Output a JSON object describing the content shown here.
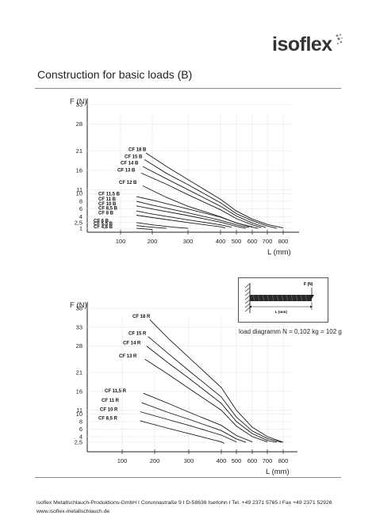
{
  "header": {
    "logo_text": "isoflex",
    "title": "Construction for basic loads (B)"
  },
  "load_diagram": {
    "force_label": "F (N)",
    "length_label": "L (mm)",
    "caption": "load diagramm  N = 0,102 kg = 102 g"
  },
  "footer": {
    "line1": "isoflex Metallschlauch-Produktions-GmbH  I  Corunnastraße 9  I  D-58636 Iserlohn  I  Tel. +49 2371 5765  I  Fax +49 2371 52926",
    "line2": "www.isoflex-metallschlauch.de"
  },
  "chart_data": [
    {
      "type": "line",
      "title": "",
      "ylabel": "F (N)",
      "xlabel": "L (mm)",
      "x_ticks": [
        "100",
        "200",
        "300",
        "400",
        "500",
        "600",
        "700",
        "800"
      ],
      "y_ticks": [
        "1",
        "2,5",
        "4",
        "6",
        "8",
        "10",
        "11",
        "16",
        "21",
        "28",
        "33"
      ],
      "xlim": [
        50,
        850
      ],
      "ylim": [
        0,
        33
      ],
      "series": [
        {
          "name": "CF 18 B",
          "label_x": 162,
          "label_y": 21.0,
          "points": [
            [
              180,
              20.5
            ],
            [
              240,
              17.0
            ],
            [
              300,
              13.6
            ],
            [
              400,
              8.5
            ],
            [
              500,
              5.5
            ],
            [
              600,
              3.4
            ],
            [
              700,
              2.0
            ],
            [
              800,
              1.1
            ]
          ]
        },
        {
          "name": "CF 15 B",
          "label_x": 157,
          "label_y": 19.2,
          "points": [
            [
              175,
              18.8
            ],
            [
              240,
              15.2
            ],
            [
              300,
              12.3
            ],
            [
              400,
              7.6
            ],
            [
              500,
              4.8
            ],
            [
              600,
              3.0
            ],
            [
              700,
              1.6
            ],
            [
              760,
              1.0
            ]
          ]
        },
        {
          "name": "CF 14 B",
          "label_x": 152,
          "label_y": 17.5,
          "points": [
            [
              170,
              17.0
            ],
            [
              240,
              13.8
            ],
            [
              300,
              11.0
            ],
            [
              400,
              6.7
            ],
            [
              500,
              4.2
            ],
            [
              600,
              2.4
            ],
            [
              690,
              1.2
            ]
          ]
        },
        {
          "name": "CF 13 B",
          "label_x": 148,
          "label_y": 15.7,
          "points": [
            [
              165,
              15.3
            ],
            [
              240,
              12.4
            ],
            [
              300,
              9.7
            ],
            [
              400,
              5.8
            ],
            [
              500,
              3.5
            ],
            [
              600,
              1.9
            ],
            [
              660,
              1.2
            ]
          ]
        },
        {
          "name": "CF 12 B",
          "label_x": 150,
          "label_y": 12.5,
          "points": [
            [
              170,
              12.0
            ],
            [
              240,
              9.0
            ],
            [
              300,
              6.7
            ],
            [
              400,
              4.0
            ],
            [
              500,
              2.4
            ],
            [
              600,
              1.4
            ]
          ]
        },
        {
          "name": "CF 11,5 B",
          "label_x": 124,
          "label_y": 9.5,
          "points": [
            [
              150,
              9.2
            ],
            [
              200,
              8.3
            ],
            [
              300,
              6.0
            ],
            [
              400,
              3.9
            ],
            [
              500,
              2.4
            ],
            [
              600,
              1.3
            ],
            [
              640,
              1.0
            ]
          ]
        },
        {
          "name": "CF 11 B",
          "label_x": 124,
          "label_y": 8.2,
          "points": [
            [
              150,
              8.0
            ],
            [
              200,
              7.0
            ],
            [
              300,
              5.0
            ],
            [
              400,
              3.1
            ],
            [
              500,
              1.9
            ],
            [
              580,
              1.2
            ]
          ]
        },
        {
          "name": "CF 10 B",
          "label_x": 124,
          "label_y": 7.0,
          "points": [
            [
              150,
              6.8
            ],
            [
              200,
              6.0
            ],
            [
              300,
              4.3
            ],
            [
              400,
              2.6
            ],
            [
              500,
              1.5
            ],
            [
              560,
              1.0
            ]
          ]
        },
        {
          "name": "CF 8,5 B",
          "label_x": 124,
          "label_y": 5.8,
          "points": [
            [
              150,
              5.5
            ],
            [
              200,
              4.7
            ],
            [
              300,
              3.2
            ],
            [
              400,
              1.9
            ],
            [
              470,
              1.3
            ]
          ]
        },
        {
          "name": "CF 8 B",
          "label_x": 124,
          "label_y": 4.6,
          "points": [
            [
              150,
              4.4
            ],
            [
              200,
              3.8
            ],
            [
              300,
              2.5
            ],
            [
              400,
              1.4
            ],
            [
              430,
              1.1
            ]
          ]
        },
        {
          "name": "CF 6 B",
          "label_x": 118,
          "label_y": 2.6,
          "points": [
            [
              150,
              2.5
            ],
            [
              200,
              1.9
            ],
            [
              260,
              1.3
            ],
            [
              300,
              1.0
            ]
          ]
        },
        {
          "name": "CF 5,5 B",
          "label_x": 118,
          "label_y": 1.8,
          "points": [
            [
              150,
              1.7
            ],
            [
              200,
              1.3
            ],
            [
              240,
              1.0
            ]
          ]
        },
        {
          "name": "CF 4,8 B",
          "label_x": 118,
          "label_y": 1.0,
          "points": [
            [
              150,
              1.0
            ],
            [
              200,
              0.7
            ]
          ]
        }
      ]
    },
    {
      "type": "line",
      "title": "",
      "ylabel": "F (N)",
      "xlabel": "L (mm)",
      "x_ticks": [
        "100",
        "200",
        "300",
        "400",
        "500",
        "600",
        "700",
        "800"
      ],
      "y_ticks": [
        "2,5",
        "4",
        "6",
        "8",
        "10",
        "11",
        "16",
        "21",
        "28",
        "33",
        "38"
      ],
      "xlim": [
        50,
        850
      ],
      "ylim": [
        0,
        38
      ],
      "series": [
        {
          "name": "CF 18 R",
          "label_x": 167,
          "label_y": 35.5,
          "points": [
            [
              185,
              35.0
            ],
            [
              240,
              30.0
            ],
            [
              300,
              25.0
            ],
            [
              400,
              17.0
            ],
            [
              500,
              11.0
            ],
            [
              600,
              6.5
            ],
            [
              700,
              4.0
            ],
            [
              800,
              2.5
            ]
          ]
        },
        {
          "name": "CF 15 R",
          "label_x": 162,
          "label_y": 31.0,
          "points": [
            [
              180,
              30.5
            ],
            [
              240,
              26.0
            ],
            [
              300,
              21.5
            ],
            [
              400,
              14.5
            ],
            [
              500,
              9.2
            ],
            [
              600,
              5.5
            ],
            [
              700,
              3.5
            ],
            [
              790,
              2.5
            ]
          ]
        },
        {
          "name": "CF 14 R",
          "label_x": 155,
          "label_y": 28.5,
          "points": [
            [
              175,
              28.0
            ],
            [
              240,
              23.5
            ],
            [
              300,
              19.5
            ],
            [
              400,
              12.8
            ],
            [
              500,
              8.0
            ],
            [
              600,
              4.8
            ],
            [
              700,
              3.0
            ],
            [
              760,
              2.5
            ]
          ]
        },
        {
          "name": "CF 13 R",
          "label_x": 150,
          "label_y": 25.0,
          "points": [
            [
              170,
              24.5
            ],
            [
              240,
              20.5
            ],
            [
              300,
              16.8
            ],
            [
              400,
              11.0
            ],
            [
              500,
              6.8
            ],
            [
              600,
              4.0
            ],
            [
              700,
              2.6
            ]
          ]
        },
        {
          "name": "CF 11,5 R",
          "label_x": 132,
          "label_y": 15.7,
          "points": [
            [
              165,
              15.5
            ],
            [
              240,
              12.8
            ],
            [
              300,
              10.5
            ],
            [
              400,
              7.0
            ],
            [
              500,
              4.3
            ],
            [
              600,
              2.6
            ]
          ]
        },
        {
          "name": "CF 11 R",
          "label_x": 128,
          "label_y": 13.2,
          "points": [
            [
              160,
              13.0
            ],
            [
              240,
              10.4
            ],
            [
              300,
              8.6
            ],
            [
              400,
              5.6
            ],
            [
              500,
              3.4
            ],
            [
              560,
              2.5
            ]
          ]
        },
        {
          "name": "CF 10 R",
          "label_x": 126,
          "label_y": 10.8,
          "points": [
            [
              155,
              10.6
            ],
            [
              240,
              8.5
            ],
            [
              300,
              7.0
            ],
            [
              400,
              4.4
            ],
            [
              500,
              2.6
            ]
          ]
        },
        {
          "name": "CF 8,5 R",
          "label_x": 124,
          "label_y": 8.5,
          "points": [
            [
              155,
              8.2
            ],
            [
              240,
              6.2
            ],
            [
              300,
              4.8
            ],
            [
              400,
              2.6
            ],
            [
              420,
              2.2
            ]
          ]
        }
      ]
    }
  ]
}
